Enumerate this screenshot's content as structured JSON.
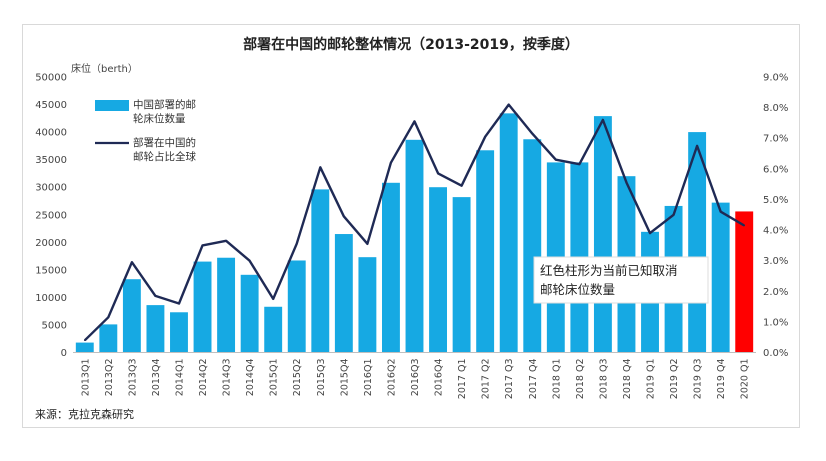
{
  "chart_data": {
    "type": "bar",
    "title": "部署在中国的邮轮整体情况（2013-2019，按季度）",
    "ylabel": "床位（berth）",
    "ylim": [
      0,
      50000
    ],
    "y_ticks": [
      "0",
      "5000",
      "10000",
      "15000",
      "20000",
      "25000",
      "30000",
      "35000",
      "40000",
      "45000",
      "50000"
    ],
    "y2lim": [
      0,
      9.0
    ],
    "y2_ticks": [
      "0.0%",
      "1.0%",
      "2.0%",
      "3.0%",
      "4.0%",
      "5.0%",
      "6.0%",
      "7.0%",
      "8.0%",
      "9.0%"
    ],
    "categories": [
      "2013Q1",
      "2013Q2",
      "2013Q3",
      "2013Q4",
      "2014Q1",
      "2014Q2",
      "2014Q3",
      "2014Q4",
      "2015Q1",
      "2015Q2",
      "2015Q3",
      "2015Q4",
      "2016Q1",
      "2016Q2",
      "2016Q3",
      "2016Q4",
      "2017 Q1",
      "2017 Q2",
      "2017 Q3",
      "2017 Q4",
      "2018 Q1",
      "2018 Q2",
      "2018 Q3",
      "2018 Q4",
      "2019 Q1",
      "2019 Q2",
      "2019 Q3",
      "2019 Q4",
      "2020 Q1"
    ],
    "series": [
      {
        "name": "中国部署的邮轮床位数量",
        "axis": "left",
        "color": "#16a9e3",
        "values": [
          1800,
          5100,
          13300,
          8600,
          7300,
          16500,
          17200,
          14100,
          8300,
          16700,
          29600,
          21500,
          17300,
          30800,
          38600,
          30000,
          28200,
          36700,
          43400,
          38700,
          34500,
          34500,
          42900,
          32000,
          21900,
          26600,
          40000,
          27200,
          25600
        ]
      },
      {
        "name": "部署在中国的邮轮占比全球",
        "axis": "right",
        "color": "#1f2a55",
        "unit": "%",
        "values": [
          0.4,
          1.15,
          2.95,
          1.85,
          1.6,
          3.5,
          3.65,
          3.0,
          1.75,
          3.55,
          6.05,
          4.45,
          3.55,
          6.2,
          7.55,
          5.85,
          5.45,
          7.05,
          8.1,
          7.15,
          6.3,
          6.15,
          7.6,
          5.55,
          3.9,
          4.5,
          6.75,
          4.6,
          4.15
        ]
      }
    ],
    "highlight": {
      "index": 28,
      "color": "#ff0000"
    },
    "legend": [
      "中国部署的邮轮床位数量",
      "部署在中国的邮轮占比全球"
    ],
    "legend_placement": "top-left",
    "annotation": [
      "红色柱形为当前已知取消",
      "邮轮床位数量"
    ],
    "source": "来源：克拉克森研究"
  }
}
